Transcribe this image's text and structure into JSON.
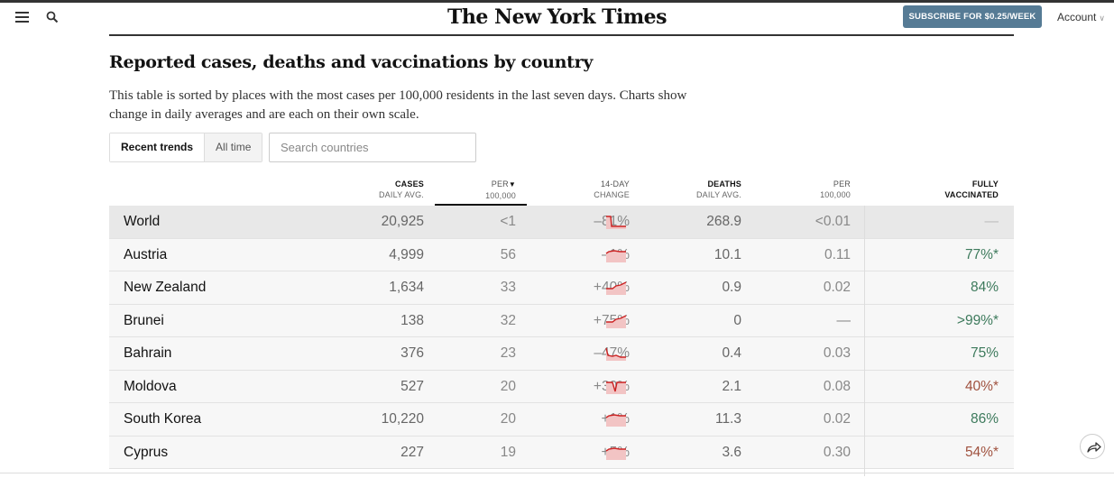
{
  "header": {
    "logo": "The New York Times",
    "subscribe_label": "SUBSCRIBE FOR $0.25/WEEK",
    "account_label": "Account",
    "subscribe_color": "#567b95"
  },
  "article": {
    "title": "Reported cases, deaths and vaccinations by country",
    "description": "This table is sorted by places with the most cases per 100,000 residents in the last seven days. Charts show change in daily averages and are each on their own scale."
  },
  "controls": {
    "tabs": [
      "Recent trends",
      "All time"
    ],
    "active_tab": "Recent trends",
    "search_placeholder": "Search countries"
  },
  "table": {
    "columns": [
      {
        "top": "CASES",
        "bottom": "DAILY AVG."
      },
      {
        "top": "PER",
        "bottom": "100,000"
      },
      {
        "top": "14-DAY",
        "bottom": "CHANGE"
      },
      {
        "top": "DEATHS",
        "bottom": "DAILY AVG."
      },
      {
        "top": "PER",
        "bottom": "100,000"
      },
      {
        "top": "FULLY",
        "bottom": "VACCINATED"
      }
    ],
    "sorted_column": "PER 100,000",
    "rows": [
      {
        "name": "World",
        "cases": "20,925",
        "per": "<1",
        "change": "–81%",
        "deaths": "268.9",
        "deaths_per": "<0.01",
        "vaccinated": "—",
        "vax_color": "#bbbbbb",
        "trend": "sharp-drop"
      },
      {
        "name": "Austria",
        "cases": "4,999",
        "per": "56",
        "change": "–1%",
        "deaths": "10.1",
        "deaths_per": "0.11",
        "vaccinated": "77%*",
        "vax_color": "#3d7a5c",
        "trend": "flat"
      },
      {
        "name": "New Zealand",
        "cases": "1,634",
        "per": "33",
        "change": "+40%",
        "deaths": "0.9",
        "deaths_per": "0.02",
        "vaccinated": "84%",
        "vax_color": "#3d7a5c",
        "trend": "rise"
      },
      {
        "name": "Brunei",
        "cases": "138",
        "per": "32",
        "change": "+75%",
        "deaths": "0",
        "deaths_per": "—",
        "vaccinated": ">99%*",
        "vax_color": "#3d7a5c",
        "trend": "rise"
      },
      {
        "name": "Bahrain",
        "cases": "376",
        "per": "23",
        "change": "–47%",
        "deaths": "0.4",
        "deaths_per": "0.03",
        "vaccinated": "75%",
        "vax_color": "#3d7a5c",
        "trend": "drop"
      },
      {
        "name": "Moldova",
        "cases": "527",
        "per": "20",
        "change": "+30%",
        "deaths": "2.1",
        "deaths_per": "0.08",
        "vaccinated": "40%*",
        "vax_color": "#a0523f",
        "trend": "spike"
      },
      {
        "name": "South Korea",
        "cases": "10,220",
        "per": "20",
        "change": "+1%",
        "deaths": "11.3",
        "deaths_per": "0.02",
        "vaccinated": "86%",
        "vax_color": "#3d7a5c",
        "trend": "flat"
      },
      {
        "name": "Cyprus",
        "cases": "227",
        "per": "19",
        "change": "+5%",
        "deaths": "3.6",
        "deaths_per": "0.30",
        "vaccinated": "54%*",
        "vax_color": "#a0523f",
        "trend": "flat"
      }
    ]
  },
  "colors": {
    "spark_line": "#cc2222",
    "spark_fill": "#f2c4c4"
  }
}
